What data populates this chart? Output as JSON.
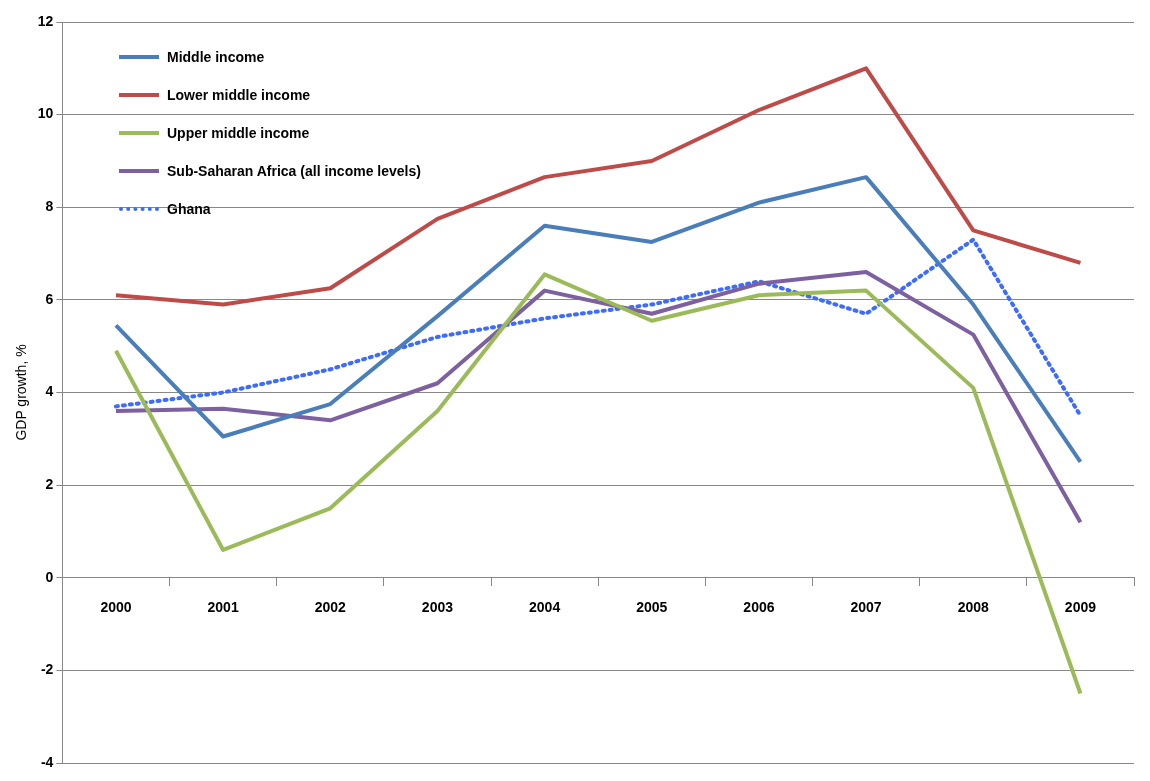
{
  "chart_data": {
    "type": "line",
    "ylabel": "GDP growth, %",
    "categories": [
      "2000",
      "2001",
      "2002",
      "2003",
      "2004",
      "2005",
      "2006",
      "2007",
      "2008",
      "2009"
    ],
    "series": [
      {
        "name": "Middle income",
        "color": "#4a7ebb",
        "values": [
          5.45,
          3.05,
          3.75,
          5.65,
          7.6,
          7.25,
          8.1,
          8.65,
          5.9,
          2.5
        ]
      },
      {
        "name": "Lower middle income",
        "color": "#be4b48",
        "values": [
          6.1,
          5.9,
          6.25,
          7.75,
          8.65,
          9.0,
          10.1,
          11.0,
          7.5,
          6.8
        ]
      },
      {
        "name": "Upper middle income",
        "color": "#9bbb59",
        "values": [
          4.9,
          0.6,
          1.5,
          3.6,
          6.55,
          5.55,
          6.1,
          6.2,
          4.1,
          -2.5
        ]
      },
      {
        "name": "Sub-Saharan Africa (all income levels)",
        "color": "#7d60a0",
        "values": [
          3.6,
          3.65,
          3.4,
          4.2,
          6.2,
          5.7,
          6.35,
          6.6,
          5.25,
          1.2
        ]
      },
      {
        "name": "Ghana",
        "color": "#3d6bff",
        "line_style": "dotted",
        "values": [
          3.7,
          4.0,
          4.5,
          5.2,
          5.6,
          5.9,
          6.4,
          5.7,
          7.3,
          3.5
        ]
      }
    ],
    "ylim": [
      -4,
      12
    ],
    "yticks": [
      -4,
      -2,
      0,
      2,
      4,
      6,
      8,
      10,
      12
    ],
    "grid": "y",
    "legend": "top left",
    "marker": "none"
  }
}
